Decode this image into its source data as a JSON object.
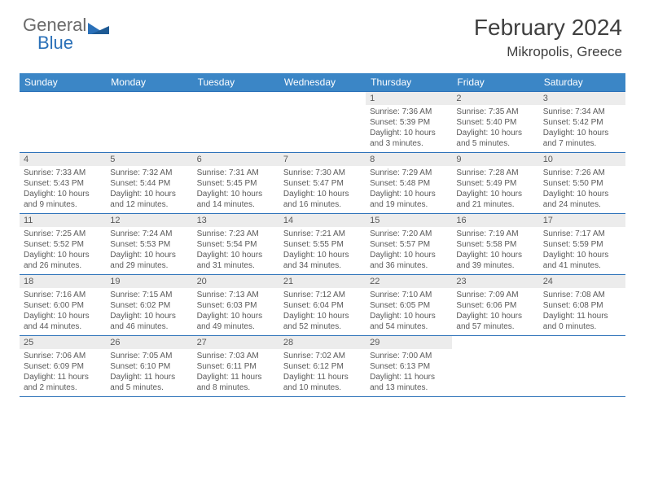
{
  "brand": {
    "word1": "General",
    "word2": "Blue"
  },
  "title": "February 2024",
  "location": "Mikropolis, Greece",
  "colors": {
    "header_bg": "#3b86c6",
    "header_text": "#ffffff",
    "rule": "#2a70b8",
    "daynum_bg": "#ececec",
    "text": "#5a5a5a",
    "logo_gray": "#6a6a6a",
    "logo_blue": "#2a70b8"
  },
  "day_headers": [
    "Sunday",
    "Monday",
    "Tuesday",
    "Wednesday",
    "Thursday",
    "Friday",
    "Saturday"
  ],
  "weeks": [
    [
      {
        "n": "",
        "t": ""
      },
      {
        "n": "",
        "t": ""
      },
      {
        "n": "",
        "t": ""
      },
      {
        "n": "",
        "t": ""
      },
      {
        "n": "1",
        "t": "Sunrise: 7:36 AM\nSunset: 5:39 PM\nDaylight: 10 hours and 3 minutes."
      },
      {
        "n": "2",
        "t": "Sunrise: 7:35 AM\nSunset: 5:40 PM\nDaylight: 10 hours and 5 minutes."
      },
      {
        "n": "3",
        "t": "Sunrise: 7:34 AM\nSunset: 5:42 PM\nDaylight: 10 hours and 7 minutes."
      }
    ],
    [
      {
        "n": "4",
        "t": "Sunrise: 7:33 AM\nSunset: 5:43 PM\nDaylight: 10 hours and 9 minutes."
      },
      {
        "n": "5",
        "t": "Sunrise: 7:32 AM\nSunset: 5:44 PM\nDaylight: 10 hours and 12 minutes."
      },
      {
        "n": "6",
        "t": "Sunrise: 7:31 AM\nSunset: 5:45 PM\nDaylight: 10 hours and 14 minutes."
      },
      {
        "n": "7",
        "t": "Sunrise: 7:30 AM\nSunset: 5:47 PM\nDaylight: 10 hours and 16 minutes."
      },
      {
        "n": "8",
        "t": "Sunrise: 7:29 AM\nSunset: 5:48 PM\nDaylight: 10 hours and 19 minutes."
      },
      {
        "n": "9",
        "t": "Sunrise: 7:28 AM\nSunset: 5:49 PM\nDaylight: 10 hours and 21 minutes."
      },
      {
        "n": "10",
        "t": "Sunrise: 7:26 AM\nSunset: 5:50 PM\nDaylight: 10 hours and 24 minutes."
      }
    ],
    [
      {
        "n": "11",
        "t": "Sunrise: 7:25 AM\nSunset: 5:52 PM\nDaylight: 10 hours and 26 minutes."
      },
      {
        "n": "12",
        "t": "Sunrise: 7:24 AM\nSunset: 5:53 PM\nDaylight: 10 hours and 29 minutes."
      },
      {
        "n": "13",
        "t": "Sunrise: 7:23 AM\nSunset: 5:54 PM\nDaylight: 10 hours and 31 minutes."
      },
      {
        "n": "14",
        "t": "Sunrise: 7:21 AM\nSunset: 5:55 PM\nDaylight: 10 hours and 34 minutes."
      },
      {
        "n": "15",
        "t": "Sunrise: 7:20 AM\nSunset: 5:57 PM\nDaylight: 10 hours and 36 minutes."
      },
      {
        "n": "16",
        "t": "Sunrise: 7:19 AM\nSunset: 5:58 PM\nDaylight: 10 hours and 39 minutes."
      },
      {
        "n": "17",
        "t": "Sunrise: 7:17 AM\nSunset: 5:59 PM\nDaylight: 10 hours and 41 minutes."
      }
    ],
    [
      {
        "n": "18",
        "t": "Sunrise: 7:16 AM\nSunset: 6:00 PM\nDaylight: 10 hours and 44 minutes."
      },
      {
        "n": "19",
        "t": "Sunrise: 7:15 AM\nSunset: 6:02 PM\nDaylight: 10 hours and 46 minutes."
      },
      {
        "n": "20",
        "t": "Sunrise: 7:13 AM\nSunset: 6:03 PM\nDaylight: 10 hours and 49 minutes."
      },
      {
        "n": "21",
        "t": "Sunrise: 7:12 AM\nSunset: 6:04 PM\nDaylight: 10 hours and 52 minutes."
      },
      {
        "n": "22",
        "t": "Sunrise: 7:10 AM\nSunset: 6:05 PM\nDaylight: 10 hours and 54 minutes."
      },
      {
        "n": "23",
        "t": "Sunrise: 7:09 AM\nSunset: 6:06 PM\nDaylight: 10 hours and 57 minutes."
      },
      {
        "n": "24",
        "t": "Sunrise: 7:08 AM\nSunset: 6:08 PM\nDaylight: 11 hours and 0 minutes."
      }
    ],
    [
      {
        "n": "25",
        "t": "Sunrise: 7:06 AM\nSunset: 6:09 PM\nDaylight: 11 hours and 2 minutes."
      },
      {
        "n": "26",
        "t": "Sunrise: 7:05 AM\nSunset: 6:10 PM\nDaylight: 11 hours and 5 minutes."
      },
      {
        "n": "27",
        "t": "Sunrise: 7:03 AM\nSunset: 6:11 PM\nDaylight: 11 hours and 8 minutes."
      },
      {
        "n": "28",
        "t": "Sunrise: 7:02 AM\nSunset: 6:12 PM\nDaylight: 11 hours and 10 minutes."
      },
      {
        "n": "29",
        "t": "Sunrise: 7:00 AM\nSunset: 6:13 PM\nDaylight: 11 hours and 13 minutes."
      },
      {
        "n": "",
        "t": ""
      },
      {
        "n": "",
        "t": ""
      }
    ]
  ]
}
